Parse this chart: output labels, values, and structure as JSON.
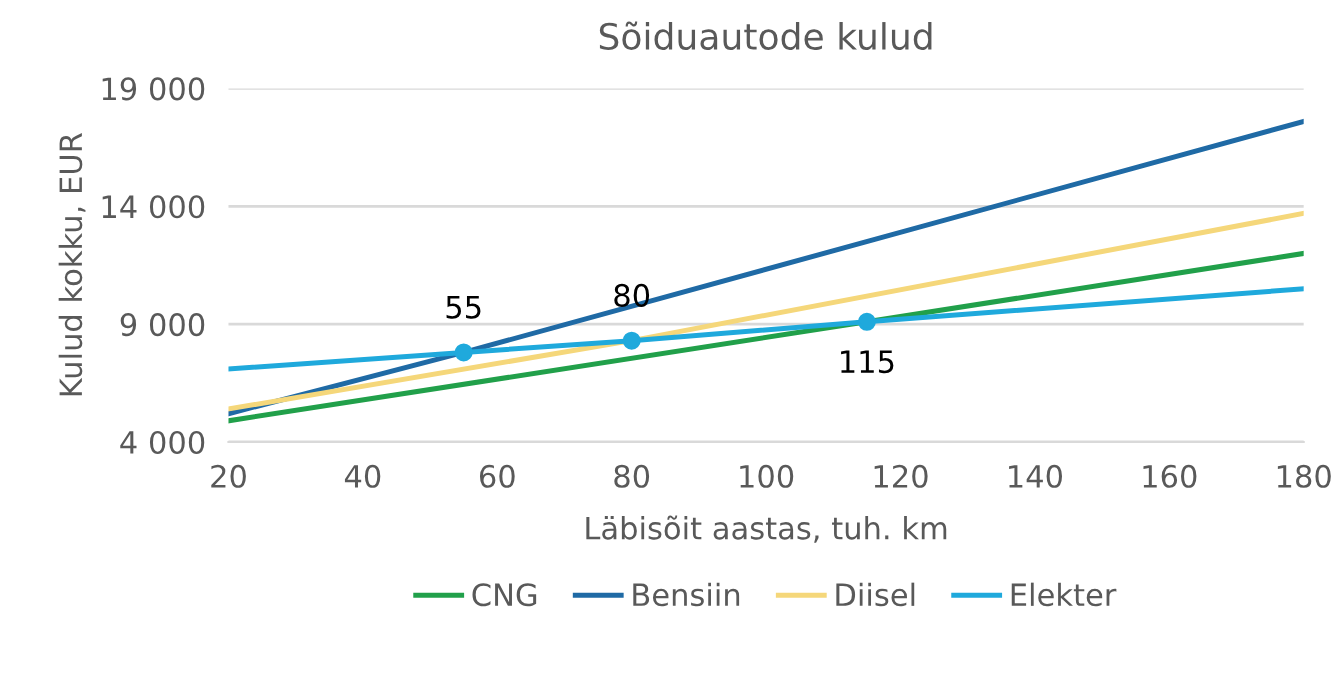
{
  "chart_data": {
    "type": "line",
    "title": "Sõiduautode kulud",
    "xlabel": "Läbisõit aastas, tuh. km",
    "ylabel": "Kulud kokku, EUR",
    "xlim": [
      20,
      180
    ],
    "xticks": [
      20,
      40,
      60,
      80,
      100,
      120,
      140,
      160,
      180
    ],
    "ylim": [
      4000,
      19000
    ],
    "yticks": [
      {
        "value": 4000,
        "label": "4 000"
      },
      {
        "value": 9000,
        "label": "9 000"
      },
      {
        "value": 14000,
        "label": "14 000"
      },
      {
        "value": 19000,
        "label": "19 000"
      }
    ],
    "grid": "y",
    "legend": "bottom",
    "series": [
      {
        "name": "CNG",
        "color": "#21a04a",
        "x": [
          20,
          115,
          180
        ],
        "values": [
          4900,
          9100,
          12000
        ]
      },
      {
        "name": "Bensiin",
        "color": "#1f6aa5",
        "x": [
          20,
          55,
          180
        ],
        "values": [
          5200,
          7800,
          17600
        ]
      },
      {
        "name": "Diisel",
        "color": "#f5d77a",
        "x": [
          20,
          80,
          180
        ],
        "values": [
          5400,
          8300,
          13700
        ]
      },
      {
        "name": "Elekter",
        "color": "#1fa9dc",
        "x": [
          20,
          55,
          80,
          115,
          180
        ],
        "values": [
          7100,
          7800,
          8300,
          9100,
          10500
        ]
      },
      {
        "type": "scatter",
        "color": "#1fa9dc",
        "marker": "circle",
        "x": [
          55,
          80,
          115
        ],
        "values": [
          7800,
          8300,
          9100
        ]
      }
    ],
    "annotations": [
      {
        "text": "55",
        "x": 55,
        "y": 7800
      },
      {
        "text": "80",
        "x": 80,
        "y": 8300
      },
      {
        "text": "115",
        "x": 115,
        "y": 9100
      }
    ]
  }
}
